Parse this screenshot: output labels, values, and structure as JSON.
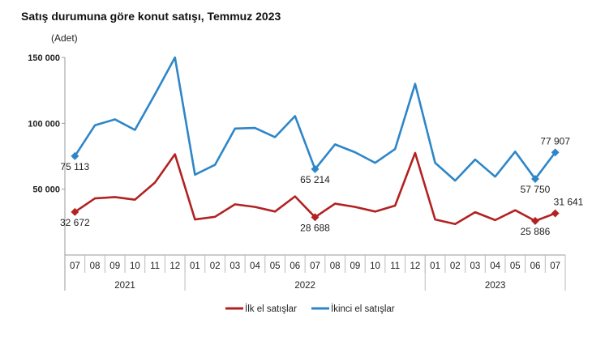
{
  "chart_data": {
    "type": "line",
    "title": "Satış durumuna göre konut satışı, Temmuz 2023",
    "ylabel": "(Adet)",
    "ylim": [
      0,
      150000
    ],
    "yticks": [
      50000,
      100000,
      150000
    ],
    "ytick_labels": [
      "50 000",
      "100 000",
      "150 000"
    ],
    "grid": false,
    "legend_position": "bottom",
    "categories": [
      "07",
      "08",
      "09",
      "10",
      "11",
      "12",
      "01",
      "02",
      "03",
      "04",
      "05",
      "06",
      "07",
      "08",
      "09",
      "10",
      "11",
      "12",
      "01",
      "02",
      "03",
      "04",
      "05",
      "06",
      "07"
    ],
    "year_groups": [
      {
        "label": "2021",
        "count": 6
      },
      {
        "label": "2022",
        "count": 12
      },
      {
        "label": "2023",
        "count": 7
      }
    ],
    "series": [
      {
        "name": "İlk el satışlar",
        "color": "#b22222",
        "values": [
          32672,
          43000,
          44000,
          42000,
          55000,
          76500,
          27000,
          29000,
          38500,
          36500,
          33000,
          44500,
          28688,
          39000,
          36500,
          33000,
          37500,
          77500,
          27000,
          23500,
          32500,
          26500,
          34000,
          25886,
          31641
        ],
        "labeled_points": [
          {
            "index": 0,
            "label": "32 672"
          },
          {
            "index": 12,
            "label": "28 688"
          },
          {
            "index": 23,
            "label": "25 886"
          },
          {
            "index": 24,
            "label": "31 641"
          }
        ]
      },
      {
        "name": "İkinci el satışlar",
        "color": "#2e86c8",
        "values": [
          75113,
          98500,
          103000,
          95000,
          122000,
          150000,
          61000,
          68500,
          96000,
          96500,
          89500,
          105500,
          65214,
          84000,
          78000,
          70000,
          80500,
          130000,
          70000,
          56500,
          72500,
          59500,
          78500,
          57750,
          77907
        ],
        "labeled_points": [
          {
            "index": 0,
            "label": "75 113"
          },
          {
            "index": 12,
            "label": "65 214"
          },
          {
            "index": 23,
            "label": "57 750"
          },
          {
            "index": 24,
            "label": "77 907"
          }
        ]
      }
    ]
  }
}
